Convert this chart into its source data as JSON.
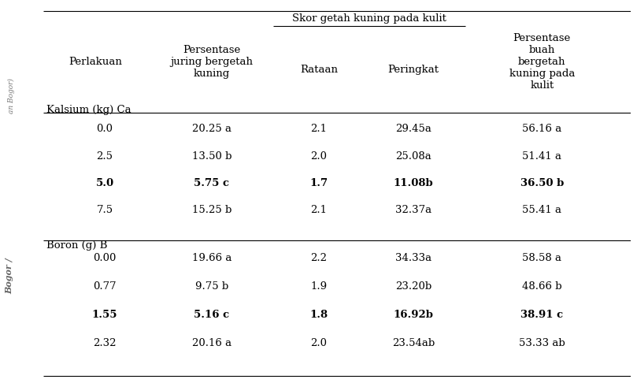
{
  "headers": {
    "col1": "Perlakuan",
    "col2": "Persentase\njuring bergetah\nkuning",
    "col3_group": "Skor getah kuning pada kulit",
    "col3a": "Rataan",
    "col3b": "Peringkat",
    "col4": "Persentase\nbuah\nbergetah\nkuning pada\nkulit"
  },
  "section1_label": "Kalsium (kg) Ca",
  "section1_rows": [
    {
      "perlakuan": "0.0",
      "persentase": "20.25 a",
      "rataan": "2.1",
      "peringkat": "29.45a",
      "persen_buah": "56.16 a",
      "bold": false
    },
    {
      "perlakuan": "2.5",
      "persentase": "13.50 b",
      "rataan": "2.0",
      "peringkat": "25.08a",
      "persen_buah": "51.41 a",
      "bold": false
    },
    {
      "perlakuan": "5.0",
      "persentase": "5.75 c",
      "rataan": "1.7",
      "peringkat": "11.08b",
      "persen_buah": "36.50 b",
      "bold": true
    },
    {
      "perlakuan": "7.5",
      "persentase": "15.25 b",
      "rataan": "2.1",
      "peringkat": "32.37a",
      "persen_buah": "55.41 a",
      "bold": false
    }
  ],
  "section2_label": "Boron (g) B",
  "section2_rows": [
    {
      "perlakuan": "0.00",
      "persentase": "19.66 a",
      "rataan": "2.2",
      "peringkat": "34.33a",
      "persen_buah": "58.58 a",
      "bold": false
    },
    {
      "perlakuan": "0.77",
      "persentase": "9.75 b",
      "rataan": "1.9",
      "peringkat": "23.20b",
      "persen_buah": "48.66 b",
      "bold": false
    },
    {
      "perlakuan": "1.55",
      "persentase": "5.16 c",
      "rataan": "1.8",
      "peringkat": "16.92b",
      "persen_buah": "38.91 c",
      "bold": true
    },
    {
      "perlakuan": "2.32",
      "persentase": "20.16 a",
      "rataan": "2.0",
      "peringkat": "23.54ab",
      "persen_buah": "53.33 ab",
      "bold": false
    }
  ],
  "bg_color": "#ffffff",
  "font_size": 9.5,
  "watermark_top": "an Bogor)",
  "watermark_bottom": "Bogor /"
}
